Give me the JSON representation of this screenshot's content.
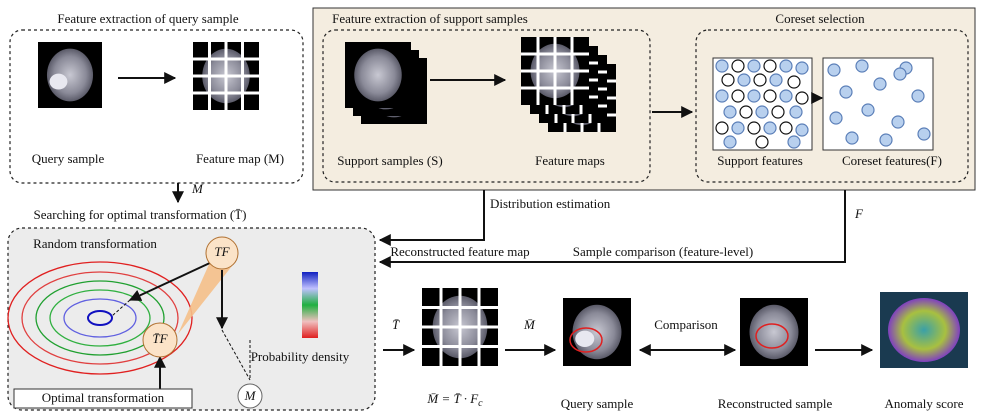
{
  "query_extraction": {
    "title": "Feature extraction of query sample",
    "query_label": "Query sample",
    "feature_map_label": "Feature map (M)",
    "arrow_label": "M"
  },
  "support_extraction": {
    "title": "Feature extraction of support samples",
    "support_label": "Support samples (S)",
    "feature_maps_label": "Feature maps"
  },
  "coreset": {
    "title": "Coreset selection",
    "support_features_label": "Support features",
    "coreset_features_label": "Coreset features(F)"
  },
  "links": {
    "distribution": "Distribution estimation",
    "f_label": "F"
  },
  "search": {
    "title": "Searching for optimal transformation (T̄)",
    "random": "Random transformation",
    "tf": "TF",
    "tbar_f": "T̄F",
    "optimal": "Optimal transformation",
    "m_node": "M",
    "density": "Probability density"
  },
  "reconstruction": {
    "title": "Reconstructed feature map",
    "t_label": "T̄",
    "m_label": "M̄",
    "formula": {
      "text": "M̄ = T̄ · F",
      "subscript": "c"
    }
  },
  "comparison": {
    "title": "Sample comparison (feature-level)",
    "arrow_label": "Comparison",
    "query_label": "Query sample",
    "reconstructed_label": "Reconstructed sample",
    "anomaly_label": "Anomaly score"
  }
}
